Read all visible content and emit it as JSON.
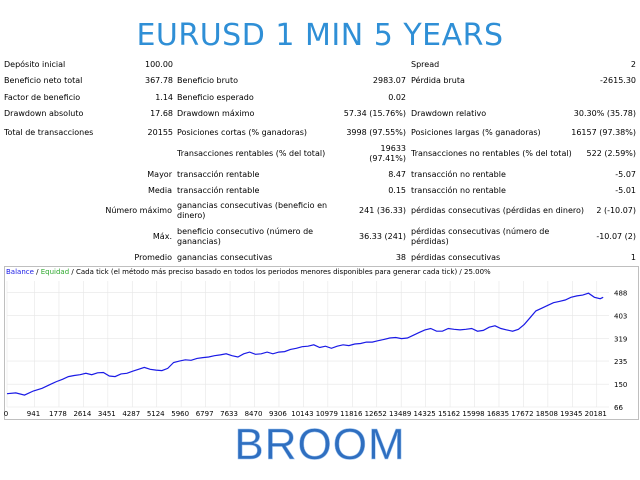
{
  "header": {
    "title": "EURUSD 1 MIN 5 YEARS"
  },
  "stats": {
    "deposito_label": "Depósito inicial",
    "deposito_value": "100.00",
    "spread_label": "Spread",
    "spread_value": "2",
    "beneficio_neto_label": "Beneficio neto total",
    "beneficio_neto_value": "367.78",
    "beneficio_bruto_label": "Beneficio bruto",
    "beneficio_bruto_value": "2983.07",
    "perdida_bruta_label": "Pérdida bruta",
    "perdida_bruta_value": "-2615.30",
    "factor_label": "Factor de beneficio",
    "factor_value": "1.14",
    "esperado_label": "Beneficio esperado",
    "esperado_value": "0.02",
    "dd_abs_label": "Drawdown absoluto",
    "dd_abs_value": "17.68",
    "dd_max_label": "Drawdown máximo",
    "dd_max_value": "57.34 (15.76%)",
    "dd_rel_label": "Drawdown relativo",
    "dd_rel_value": "30.30% (35.78)",
    "total_trans_label": "Total de transacciones",
    "total_trans_value": "20155",
    "cortas_label": "Posiciones cortas (% ganadoras)",
    "cortas_value": "3998 (97.55%)",
    "largas_label": "Posiciones largas (% ganadoras)",
    "largas_value": "16157 (97.38%)",
    "rentables_label": "Transacciones rentables (% del total)",
    "rentables_value_1": "19633",
    "rentables_value_2": "(97.41%)",
    "no_rentables_label": "Transacciones no rentables (% del total)",
    "no_rentables_value": "522 (2.59%)",
    "mayor_label": "Mayor",
    "mayor_trans_label": "transacción rentable",
    "mayor_trans_value": "8.47",
    "mayor_no_label": "transacción no rentable",
    "mayor_no_value": "-5.07",
    "media_label": "Media",
    "media_trans_label": "transacción rentable",
    "media_trans_value": "0.15",
    "media_no_label": "transacción no rentable",
    "media_no_value": "-5.01",
    "nummax_label": "Número máximo",
    "nummax_gan_label": "ganancias consecutivas (beneficio en dinero)",
    "nummax_gan_value": "241 (36.33)",
    "nummax_perd_label": "pérdidas consecutivas (pérdidas en dinero)",
    "nummax_perd_value": "2 (-10.07)",
    "max_label": "Máx.",
    "max_ben_label": "beneficio consecutivo (número de ganancias)",
    "max_ben_value": "36.33 (241)",
    "max_perd_label": "pérdidas consecutivas (número de pérdidas)",
    "max_perd_value": "-10.07 (2)",
    "promedio_label": "Promedio",
    "promedio_gan_label": "ganancias consecutivas",
    "promedio_gan_value": "38",
    "promedio_perd_label": "pérdidas consecutivas",
    "promedio_perd_value": "1"
  },
  "legend": {
    "balance": "Balance",
    "sep1": " / ",
    "equidad": "Equidad",
    "sep2": " / ",
    "rest": "Cada tick (el método más preciso basado en todos los periodos menores disponibles para generar cada tick) / 25.00%"
  },
  "colors": {
    "title": "#2f8fd6",
    "balance_line": "#1a1ae6",
    "equity_text": "#2ea82e",
    "brand": "#2f6fc0"
  },
  "chart_data": {
    "type": "line",
    "title": "",
    "xlabel": "",
    "ylabel": "",
    "x_ticks": [
      "0",
      "941",
      "1778",
      "2614",
      "3451",
      "4287",
      "5124",
      "5960",
      "6797",
      "7633",
      "8470",
      "9306",
      "10143",
      "10979",
      "11816",
      "12652",
      "13489",
      "14325",
      "15162",
      "15998",
      "16835",
      "17672",
      "18508",
      "19345",
      "20181"
    ],
    "y_ticks": [
      "66",
      "150",
      "235",
      "319",
      "403",
      "488"
    ],
    "xlim": [
      0,
      20600
    ],
    "ylim": [
      66,
      530
    ],
    "series": [
      {
        "name": "Balance",
        "x": [
          0,
          300,
          600,
          900,
          1200,
          1500,
          1700,
          1900,
          2100,
          2300,
          2500,
          2700,
          2900,
          3100,
          3300,
          3500,
          3700,
          3900,
          4100,
          4300,
          4500,
          4700,
          4900,
          5100,
          5300,
          5500,
          5700,
          5900,
          6100,
          6300,
          6500,
          6700,
          6900,
          7100,
          7300,
          7500,
          7700,
          7900,
          8100,
          8300,
          8500,
          8700,
          8900,
          9100,
          9300,
          9500,
          9700,
          9900,
          10100,
          10300,
          10500,
          10700,
          10900,
          11100,
          11300,
          11500,
          11700,
          11900,
          12100,
          12300,
          12500,
          12700,
          12900,
          13100,
          13300,
          13500,
          13700,
          13900,
          14100,
          14300,
          14500,
          14700,
          14900,
          15100,
          15300,
          15500,
          15700,
          15900,
          16100,
          16300,
          16500,
          16700,
          16900,
          17100,
          17300,
          17500,
          17700,
          17900,
          18100,
          18300,
          18500,
          18700,
          18900,
          19100,
          19300,
          19500,
          19700,
          19900,
          20100,
          20300,
          20400
        ],
        "values": [
          115,
          118,
          110,
          125,
          135,
          150,
          160,
          168,
          178,
          182,
          185,
          190,
          185,
          192,
          193,
          180,
          178,
          188,
          190,
          198,
          205,
          212,
          205,
          202,
          200,
          208,
          230,
          235,
          240,
          238,
          245,
          248,
          250,
          255,
          258,
          262,
          255,
          250,
          262,
          268,
          260,
          262,
          268,
          262,
          268,
          270,
          278,
          282,
          288,
          290,
          295,
          285,
          290,
          282,
          290,
          295,
          292,
          298,
          300,
          305,
          305,
          310,
          315,
          320,
          322,
          318,
          320,
          330,
          340,
          350,
          355,
          345,
          345,
          355,
          352,
          350,
          352,
          355,
          345,
          348,
          360,
          365,
          355,
          350,
          345,
          352,
          370,
          395,
          420,
          430,
          440,
          450,
          455,
          460,
          470,
          475,
          478,
          485,
          470,
          465,
          470
        ]
      }
    ]
  },
  "brand": {
    "text": "BROOM"
  }
}
